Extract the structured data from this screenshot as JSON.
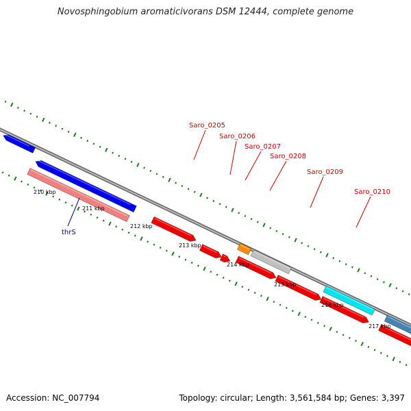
{
  "title": "Novosphingobium aromaticivorans DSM 12444, complete genome",
  "footer": {
    "accession": "Accession: NC_007794",
    "summary": "Topology: circular; Length: 3,561,584 bp; Genes: 3,397"
  },
  "colors": {
    "backbone": "#888888",
    "tick": "#1a7a1a",
    "forward_gene": "#ee0000",
    "reverse_gene": "#0000ee",
    "rna_gene": "#f08080",
    "orange_gene": "#ff8c00",
    "gray_gene": "#c0c0c0",
    "cyan_gene": "#00e5ee",
    "steel_gene": "#4682b4",
    "label_red": "#cc0000",
    "label_blue": "#0000aa"
  },
  "kbp_labels": [
    "210 kbp",
    "211 kbp",
    "212 kbp",
    "213 kbp",
    "214 kbp",
    "215 kbp",
    "216 kbp",
    "217 kbp"
  ],
  "gene_labels": [
    "Saro_0205",
    "Saro_0206",
    "Saro_0207",
    "Saro_0208",
    "Saro_0209",
    "Saro_0210"
  ],
  "gene_label_blue": "thrS"
}
